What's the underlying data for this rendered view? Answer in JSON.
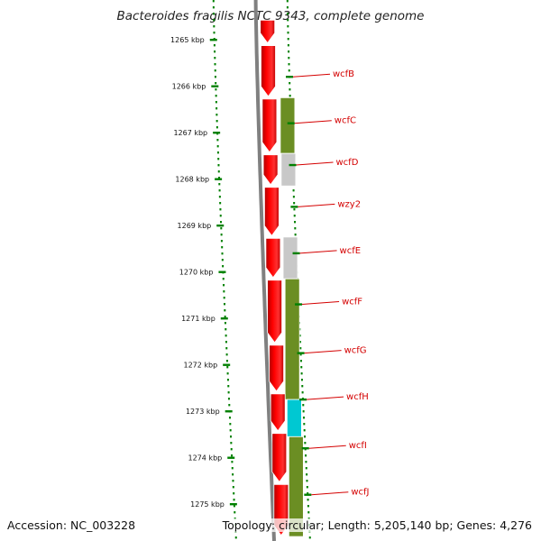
{
  "title": "Bacteroides fragilis NCTC 9343, complete genome",
  "accession_text": "Accession: NC_003228",
  "topology_text": "Topology: circular; Length: 5,205,140 bp; Genes: 4,276",
  "colors": {
    "forward_cds": "#ff0000",
    "olive": "#6b8e23",
    "grey": "#c8c8c8",
    "cyan": "#00c8d2",
    "backbone": "#808080",
    "tick": "#008000",
    "label": "#d40000"
  },
  "scale": {
    "unit": "kbp",
    "labels": [
      "1265 kbp",
      "1266 kbp",
      "1267 kbp",
      "1268 kbp",
      "1269 kbp",
      "1270 kbp",
      "1271 kbp",
      "1272 kbp",
      "1273 kbp",
      "1274 kbp",
      "1275 kbp"
    ],
    "values": [
      1265,
      1266,
      1267,
      1268,
      1269,
      1270,
      1271,
      1272,
      1273,
      1274,
      1275
    ]
  },
  "genes": [
    {
      "label": "wcfB",
      "value": 1265.8
    },
    {
      "label": "wcfC",
      "value": 1266.8
    },
    {
      "label": "wcfD",
      "value": 1267.7
    },
    {
      "label": "wzy2",
      "value": 1268.6
    },
    {
      "label": "wcfE",
      "value": 1269.6
    },
    {
      "label": "wcfF",
      "value": 1270.7
    },
    {
      "label": "wcfG",
      "value": 1271.75
    },
    {
      "label": "wcfH",
      "value": 1272.75
    },
    {
      "label": "wcfI",
      "value": 1273.8
    },
    {
      "label": "wcfJ",
      "value": 1274.8
    }
  ],
  "cog_blocks": [
    {
      "start": 1266.25,
      "end": 1267.45,
      "color": "olive"
    },
    {
      "start": 1267.45,
      "end": 1268.15,
      "color": "grey"
    },
    {
      "start": 1269.25,
      "end": 1270.15,
      "color": "grey"
    },
    {
      "start": 1270.15,
      "end": 1272.75,
      "color": "olive"
    },
    {
      "start": 1272.75,
      "end": 1273.55,
      "color": "cyan"
    },
    {
      "start": 1273.55,
      "end": 1275.7,
      "color": "olive"
    }
  ],
  "forward_arrows": [
    {
      "start": 1264.55,
      "end": 1265.1
    },
    {
      "start": 1265.1,
      "end": 1266.25
    },
    {
      "start": 1266.25,
      "end": 1267.45
    },
    {
      "start": 1267.45,
      "end": 1268.15
    },
    {
      "start": 1268.15,
      "end": 1269.25
    },
    {
      "start": 1269.25,
      "end": 1270.15
    },
    {
      "start": 1270.15,
      "end": 1271.55
    },
    {
      "start": 1271.55,
      "end": 1272.6
    },
    {
      "start": 1272.6,
      "end": 1273.45
    },
    {
      "start": 1273.45,
      "end": 1274.55
    },
    {
      "start": 1274.55,
      "end": 1275.7
    }
  ]
}
